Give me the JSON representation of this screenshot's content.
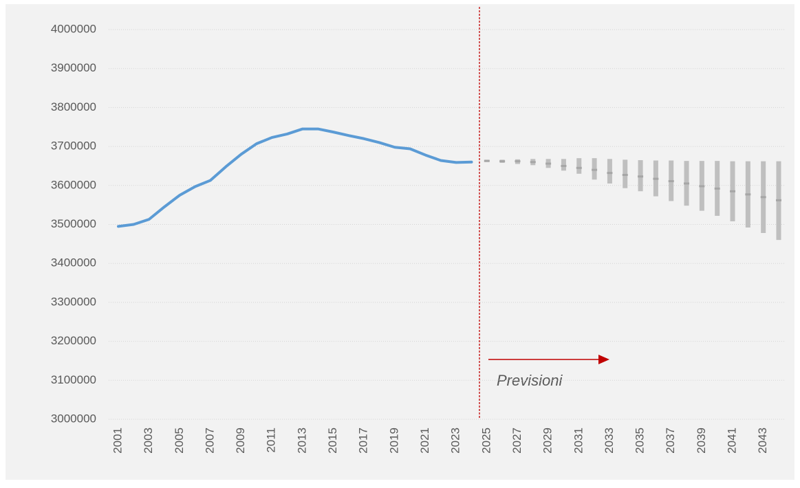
{
  "chart_data": {
    "type": "line",
    "categories": [
      "2001",
      null,
      "2003",
      null,
      "2005",
      null,
      "2007",
      null,
      "2009",
      null,
      "2011",
      null,
      "2013",
      null,
      "2015",
      null,
      "2017",
      null,
      "2019",
      null,
      "2021",
      null,
      "2023",
      null,
      "2025",
      null,
      "2027",
      null,
      "2029",
      null,
      "2031",
      null,
      "2033",
      null,
      "2035",
      null,
      "2037",
      null,
      "2039",
      null,
      "2041",
      null,
      "2043",
      null
    ],
    "series": [
      {
        "color": "#5b9bd5",
        "values": [
          3495000,
          3500000,
          3513000,
          3545000,
          3575000,
          3597000,
          3613000,
          3648000,
          3680000,
          3707000,
          3723000,
          3732000,
          3745000,
          3745000,
          3737000,
          3728000,
          3720000,
          3710000,
          3698000,
          3694000,
          3678000,
          3664000,
          3659000,
          3660000,
          null,
          null,
          null,
          null,
          null,
          null,
          null,
          null,
          null,
          null,
          null,
          null,
          null,
          null,
          null,
          null,
          null,
          null,
          null,
          null
        ]
      },
      {
        "color": "#bfbfbf",
        "values": [
          null,
          null,
          null,
          null,
          null,
          null,
          null,
          null,
          null,
          null,
          null,
          null,
          null,
          null,
          null,
          null,
          null,
          null,
          null,
          null,
          null,
          null,
          null,
          null,
          3663000,
          3662000,
          3662000,
          3660000,
          3656000,
          3650000,
          3645000,
          3640000,
          3632000,
          3627000,
          3623000,
          3617000,
          3611000,
          3605000,
          3598000,
          3592000,
          3585000,
          3577000,
          3570000,
          3562000
        ],
        "low": [
          null,
          null,
          null,
          null,
          null,
          null,
          null,
          null,
          null,
          null,
          null,
          null,
          null,
          null,
          null,
          null,
          null,
          null,
          null,
          null,
          null,
          null,
          null,
          null,
          3660000,
          3658000,
          3655000,
          3652000,
          3645000,
          3638000,
          3630000,
          3615000,
          3605000,
          3593000,
          3585000,
          3572000,
          3560000,
          3548000,
          3535000,
          3522000,
          3508000,
          3492000,
          3478000,
          3460000
        ],
        "high": [
          null,
          null,
          null,
          null,
          null,
          null,
          null,
          null,
          null,
          null,
          null,
          null,
          null,
          null,
          null,
          null,
          null,
          null,
          null,
          null,
          null,
          null,
          null,
          null,
          3666000,
          3666000,
          3667000,
          3668000,
          3668000,
          3668000,
          3670000,
          3670000,
          3668000,
          3666000,
          3665000,
          3664000,
          3664000,
          3663000,
          3663000,
          3663000,
          3662000,
          3662000,
          3662000,
          3662000
        ]
      }
    ],
    "ylim": [
      3000000,
      4000000
    ],
    "yticks": [
      3000000,
      3100000,
      3200000,
      3300000,
      3400000,
      3500000,
      3600000,
      3700000,
      3800000,
      3900000,
      4000000
    ],
    "grid": true,
    "annotation": {
      "text": "Previsioni",
      "color": "#c00000"
    }
  }
}
